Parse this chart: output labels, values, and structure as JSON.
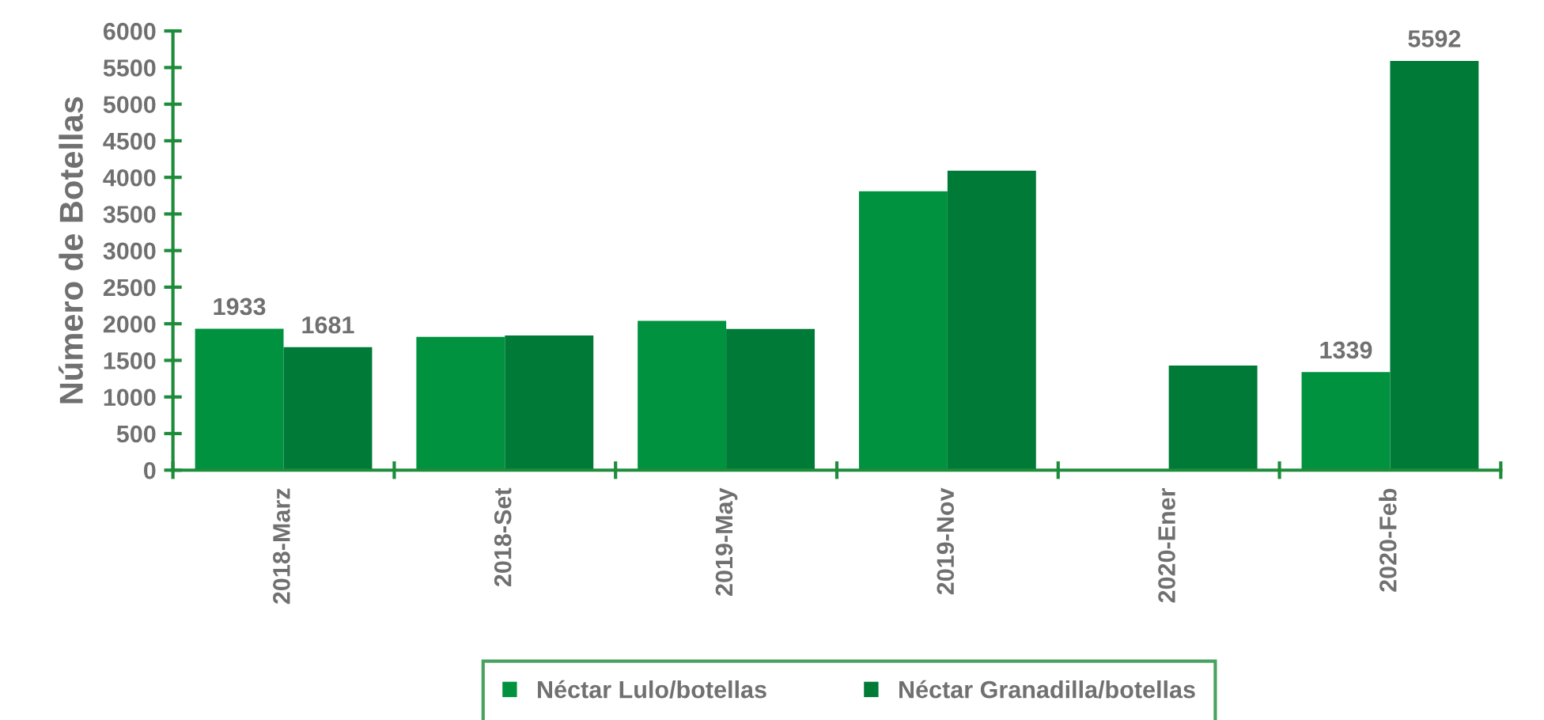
{
  "chart_data": {
    "type": "bar",
    "ylabel": "Número de Botellas",
    "categories": [
      "2018-Marz",
      "2018-Set",
      "2019-May",
      "2019-Nov",
      "2020-Ener",
      "2020-Feb"
    ],
    "series": [
      {
        "name": "Néctar Lulo/botellas",
        "color": "#00923f",
        "values": [
          1933,
          1820,
          2040,
          3810,
          null,
          1339
        ],
        "value_labels": [
          "1933",
          null,
          null,
          null,
          null,
          "1339"
        ]
      },
      {
        "name": "Néctar Granadilla/botellas",
        "color": "#007a37",
        "values": [
          1681,
          1840,
          1930,
          4090,
          1430,
          5592
        ],
        "value_labels": [
          "1681",
          null,
          null,
          null,
          null,
          "5592"
        ]
      }
    ],
    "ylim": [
      0,
      6000
    ],
    "yticks": [
      0,
      500,
      1000,
      1500,
      2000,
      2500,
      3000,
      3500,
      4000,
      4500,
      5000,
      5500,
      6000
    ],
    "grid": false,
    "legend": "bottom"
  }
}
